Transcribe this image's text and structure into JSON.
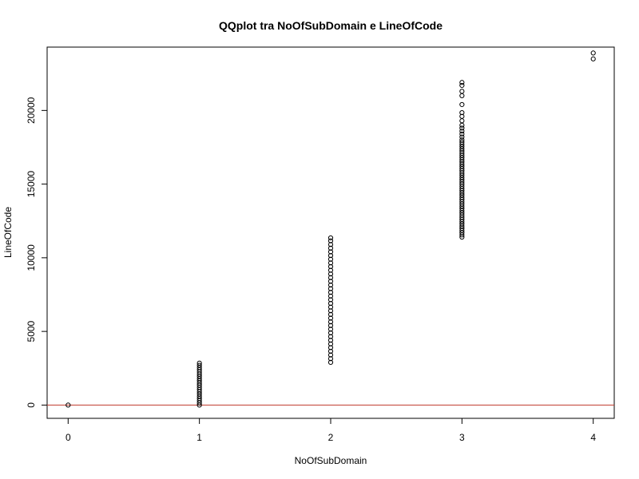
{
  "chart_data": {
    "type": "scatter",
    "title": "QQplot tra NoOfSubDomain e LineOfCode",
    "xlabel": "NoOfSubDomain",
    "ylabel": "LineOfCode",
    "xlim": [
      -0.16,
      4.16
    ],
    "ylim": [
      -900,
      24300
    ],
    "xticks": [
      0,
      1,
      2,
      3,
      4
    ],
    "yticks": [
      0,
      5000,
      10000,
      15000,
      20000
    ],
    "grid": false,
    "point_style": "open-circle",
    "point_color": "#000000",
    "reference_line": {
      "intercept": 0,
      "slope": 0,
      "color": "#c0392b"
    },
    "series": [
      {
        "points": [
          {
            "x": 0,
            "y": 0
          },
          {
            "x": 1,
            "y": 0
          },
          {
            "x": 1,
            "y": 150
          },
          {
            "x": 1,
            "y": 300
          },
          {
            "x": 1,
            "y": 450
          },
          {
            "x": 1,
            "y": 600
          },
          {
            "x": 1,
            "y": 750
          },
          {
            "x": 1,
            "y": 900
          },
          {
            "x": 1,
            "y": 1050
          },
          {
            "x": 1,
            "y": 1200
          },
          {
            "x": 1,
            "y": 1350
          },
          {
            "x": 1,
            "y": 1500
          },
          {
            "x": 1,
            "y": 1650
          },
          {
            "x": 1,
            "y": 1800
          },
          {
            "x": 1,
            "y": 1950
          },
          {
            "x": 1,
            "y": 2100
          },
          {
            "x": 1,
            "y": 2250
          },
          {
            "x": 1,
            "y": 2400
          },
          {
            "x": 1,
            "y": 2550
          },
          {
            "x": 1,
            "y": 2700
          },
          {
            "x": 1,
            "y": 2850
          },
          {
            "x": 2,
            "y": 2900
          },
          {
            "x": 2,
            "y": 3150
          },
          {
            "x": 2,
            "y": 3400
          },
          {
            "x": 2,
            "y": 3650
          },
          {
            "x": 2,
            "y": 3900
          },
          {
            "x": 2,
            "y": 4150
          },
          {
            "x": 2,
            "y": 4400
          },
          {
            "x": 2,
            "y": 4650
          },
          {
            "x": 2,
            "y": 4900
          },
          {
            "x": 2,
            "y": 5150
          },
          {
            "x": 2,
            "y": 5400
          },
          {
            "x": 2,
            "y": 5650
          },
          {
            "x": 2,
            "y": 5900
          },
          {
            "x": 2,
            "y": 6150
          },
          {
            "x": 2,
            "y": 6400
          },
          {
            "x": 2,
            "y": 6650
          },
          {
            "x": 2,
            "y": 6900
          },
          {
            "x": 2,
            "y": 7150
          },
          {
            "x": 2,
            "y": 7400
          },
          {
            "x": 2,
            "y": 7650
          },
          {
            "x": 2,
            "y": 7900
          },
          {
            "x": 2,
            "y": 8150
          },
          {
            "x": 2,
            "y": 8400
          },
          {
            "x": 2,
            "y": 8650
          },
          {
            "x": 2,
            "y": 8900
          },
          {
            "x": 2,
            "y": 9150
          },
          {
            "x": 2,
            "y": 9400
          },
          {
            "x": 2,
            "y": 9650
          },
          {
            "x": 2,
            "y": 9900
          },
          {
            "x": 2,
            "y": 10150
          },
          {
            "x": 2,
            "y": 10400
          },
          {
            "x": 2,
            "y": 10650
          },
          {
            "x": 2,
            "y": 10900
          },
          {
            "x": 2,
            "y": 11150
          },
          {
            "x": 2,
            "y": 11350
          },
          {
            "x": 3,
            "y": 11400
          },
          {
            "x": 3,
            "y": 11550
          },
          {
            "x": 3,
            "y": 11700
          },
          {
            "x": 3,
            "y": 11850
          },
          {
            "x": 3,
            "y": 12000
          },
          {
            "x": 3,
            "y": 12150
          },
          {
            "x": 3,
            "y": 12300
          },
          {
            "x": 3,
            "y": 12450
          },
          {
            "x": 3,
            "y": 12600
          },
          {
            "x": 3,
            "y": 12750
          },
          {
            "x": 3,
            "y": 12900
          },
          {
            "x": 3,
            "y": 13050
          },
          {
            "x": 3,
            "y": 13200
          },
          {
            "x": 3,
            "y": 13350
          },
          {
            "x": 3,
            "y": 13500
          },
          {
            "x": 3,
            "y": 13650
          },
          {
            "x": 3,
            "y": 13800
          },
          {
            "x": 3,
            "y": 13950
          },
          {
            "x": 3,
            "y": 14100
          },
          {
            "x": 3,
            "y": 14250
          },
          {
            "x": 3,
            "y": 14400
          },
          {
            "x": 3,
            "y": 14550
          },
          {
            "x": 3,
            "y": 14700
          },
          {
            "x": 3,
            "y": 14850
          },
          {
            "x": 3,
            "y": 15000
          },
          {
            "x": 3,
            "y": 15150
          },
          {
            "x": 3,
            "y": 15300
          },
          {
            "x": 3,
            "y": 15450
          },
          {
            "x": 3,
            "y": 15600
          },
          {
            "x": 3,
            "y": 15750
          },
          {
            "x": 3,
            "y": 15900
          },
          {
            "x": 3,
            "y": 16050
          },
          {
            "x": 3,
            "y": 16200
          },
          {
            "x": 3,
            "y": 16350
          },
          {
            "x": 3,
            "y": 16500
          },
          {
            "x": 3,
            "y": 16650
          },
          {
            "x": 3,
            "y": 16800
          },
          {
            "x": 3,
            "y": 16950
          },
          {
            "x": 3,
            "y": 17100
          },
          {
            "x": 3,
            "y": 17250
          },
          {
            "x": 3,
            "y": 17400
          },
          {
            "x": 3,
            "y": 17550
          },
          {
            "x": 3,
            "y": 17700
          },
          {
            "x": 3,
            "y": 17850
          },
          {
            "x": 3,
            "y": 18000
          },
          {
            "x": 3,
            "y": 18200
          },
          {
            "x": 3,
            "y": 18400
          },
          {
            "x": 3,
            "y": 18600
          },
          {
            "x": 3,
            "y": 18800
          },
          {
            "x": 3,
            "y": 19000
          },
          {
            "x": 3,
            "y": 19300
          },
          {
            "x": 3,
            "y": 19600
          },
          {
            "x": 3,
            "y": 19850
          },
          {
            "x": 3,
            "y": 20400
          },
          {
            "x": 3,
            "y": 21000
          },
          {
            "x": 3,
            "y": 21300
          },
          {
            "x": 3,
            "y": 21700
          },
          {
            "x": 3,
            "y": 21900
          },
          {
            "x": 4,
            "y": 23500
          },
          {
            "x": 4,
            "y": 23900
          }
        ]
      }
    ]
  }
}
